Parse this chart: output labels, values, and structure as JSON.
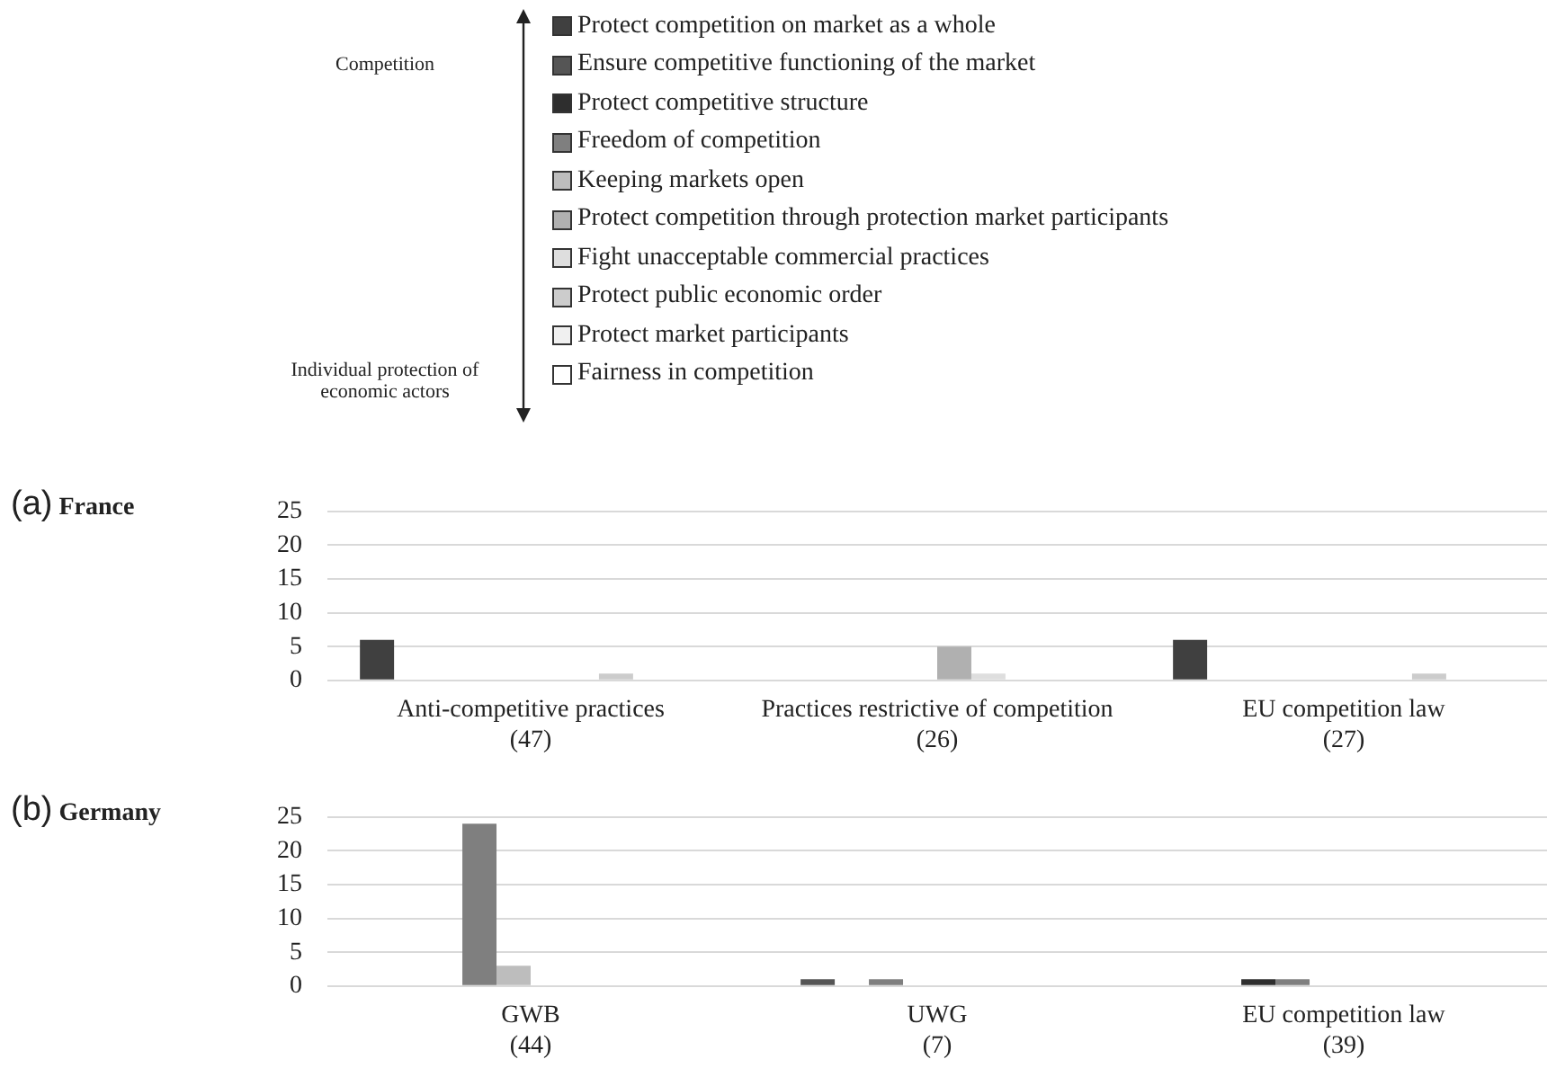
{
  "chart_data": [
    {
      "type": "bar",
      "title": "(a) France",
      "categories": [
        "Anti-competitive practices\n(47)",
        "Practices restrictive of competition\n(26)",
        "EU competition law\n(27)"
      ],
      "series": [
        {
          "name": "Protect competition on market as a whole",
          "color": "#404040",
          "values": [
            6,
            0,
            6
          ]
        },
        {
          "name": "Ensure competitive functioning of the market",
          "color": "#555555",
          "values": [
            0,
            0,
            0
          ]
        },
        {
          "name": "Protect competitive structure",
          "color": "#2e2e2e",
          "values": [
            0,
            0,
            0
          ]
        },
        {
          "name": "Freedom of competition",
          "color": "#7f7f7f",
          "values": [
            0,
            0,
            0
          ]
        },
        {
          "name": "Keeping markets open",
          "color": "#bdbdbd",
          "values": [
            0,
            0,
            0
          ]
        },
        {
          "name": "Protect competition through protection market participants",
          "color": "#b0b0b0",
          "values": [
            0,
            5,
            0
          ]
        },
        {
          "name": "Fight unacceptable commercial practices",
          "color": "#dedede",
          "values": [
            0,
            1,
            0
          ]
        },
        {
          "name": "Protect public economic order",
          "color": "#cccccc",
          "values": [
            1,
            0,
            1
          ]
        },
        {
          "name": "Protect market participants",
          "color": "#f0f0f0",
          "values": [
            0,
            0,
            0
          ]
        },
        {
          "name": "Fairness in competition",
          "color": "#ffffff",
          "values": [
            0,
            0,
            0
          ]
        }
      ],
      "ylim": [
        0,
        25
      ],
      "yticks": [
        0,
        5,
        10,
        15,
        20,
        25
      ],
      "grid": "y",
      "legend": "top",
      "annotations": [
        "Competition",
        "Individual protection of economic actors"
      ]
    },
    {
      "type": "bar",
      "title": "(b) Germany",
      "categories": [
        "GWB\n(44)",
        "UWG\n(7)",
        "EU competition law\n(39)"
      ],
      "series": [
        {
          "color": "#404040",
          "values": [
            0,
            0,
            0
          ]
        },
        {
          "color": "#555555",
          "values": [
            0,
            1,
            0
          ]
        },
        {
          "color": "#2e2e2e",
          "values": [
            0,
            0,
            1
          ]
        },
        {
          "color": "#7f7f7f",
          "values": [
            24,
            1,
            1
          ]
        },
        {
          "color": "#bdbdbd",
          "values": [
            3,
            0,
            0
          ]
        },
        {
          "color": "#b0b0b0",
          "values": [
            0,
            0,
            0
          ]
        },
        {
          "color": "#dedede",
          "values": [
            0,
            0,
            0
          ]
        },
        {
          "color": "#cccccc",
          "values": [
            0,
            0,
            0
          ]
        },
        {
          "color": "#f0f0f0",
          "values": [
            0,
            0,
            0
          ]
        },
        {
          "color": "#ffffff",
          "values": [
            0,
            0,
            0
          ]
        }
      ],
      "ylim": [
        0,
        25
      ],
      "yticks": [
        0,
        5,
        10,
        15,
        20,
        25
      ],
      "grid": "y"
    }
  ]
}
